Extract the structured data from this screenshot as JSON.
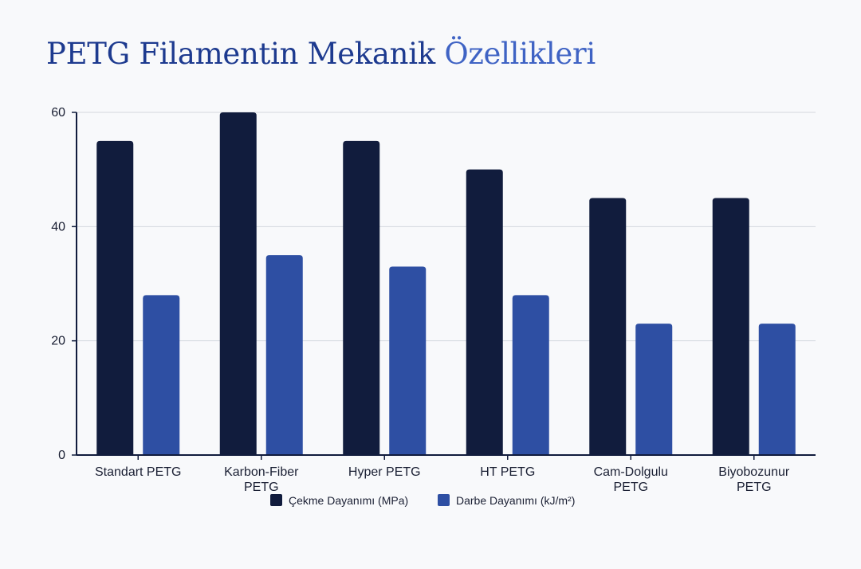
{
  "title_part1": "PETG Filamentin Mekanik ",
  "title_part2": "Özellikleri",
  "colors": {
    "tensile": "#111c3d",
    "impact": "#2e4fa3",
    "title": "#1d3a8f",
    "title_accent": "#3f63c4",
    "grid": "#d4d7de",
    "axis": "#111c3d"
  },
  "chart_data": {
    "type": "bar",
    "title": "PETG Filamentin Mekanik Özellikleri",
    "xlabel": "",
    "ylabel": "",
    "ylim": [
      0,
      60
    ],
    "yticks": [
      0,
      20,
      40,
      60
    ],
    "grid": true,
    "legend_position": "bottom-center",
    "categories": [
      [
        "Standart PETG"
      ],
      [
        "Karbon-Fiber",
        "PETG"
      ],
      [
        "Hyper PETG"
      ],
      [
        "HT PETG"
      ],
      [
        "Cam-Dolgulu",
        "PETG"
      ],
      [
        "Biyobozunur",
        "PETG"
      ]
    ],
    "series": [
      {
        "name": "Çekme Dayanımı (MPa)",
        "color": "#111c3d",
        "values": [
          55,
          60,
          55,
          50,
          45,
          45
        ]
      },
      {
        "name": "Darbe Dayanımı (kJ/m²)",
        "color": "#2e4fa3",
        "values": [
          28,
          35,
          33,
          28,
          23,
          23
        ]
      }
    ]
  }
}
